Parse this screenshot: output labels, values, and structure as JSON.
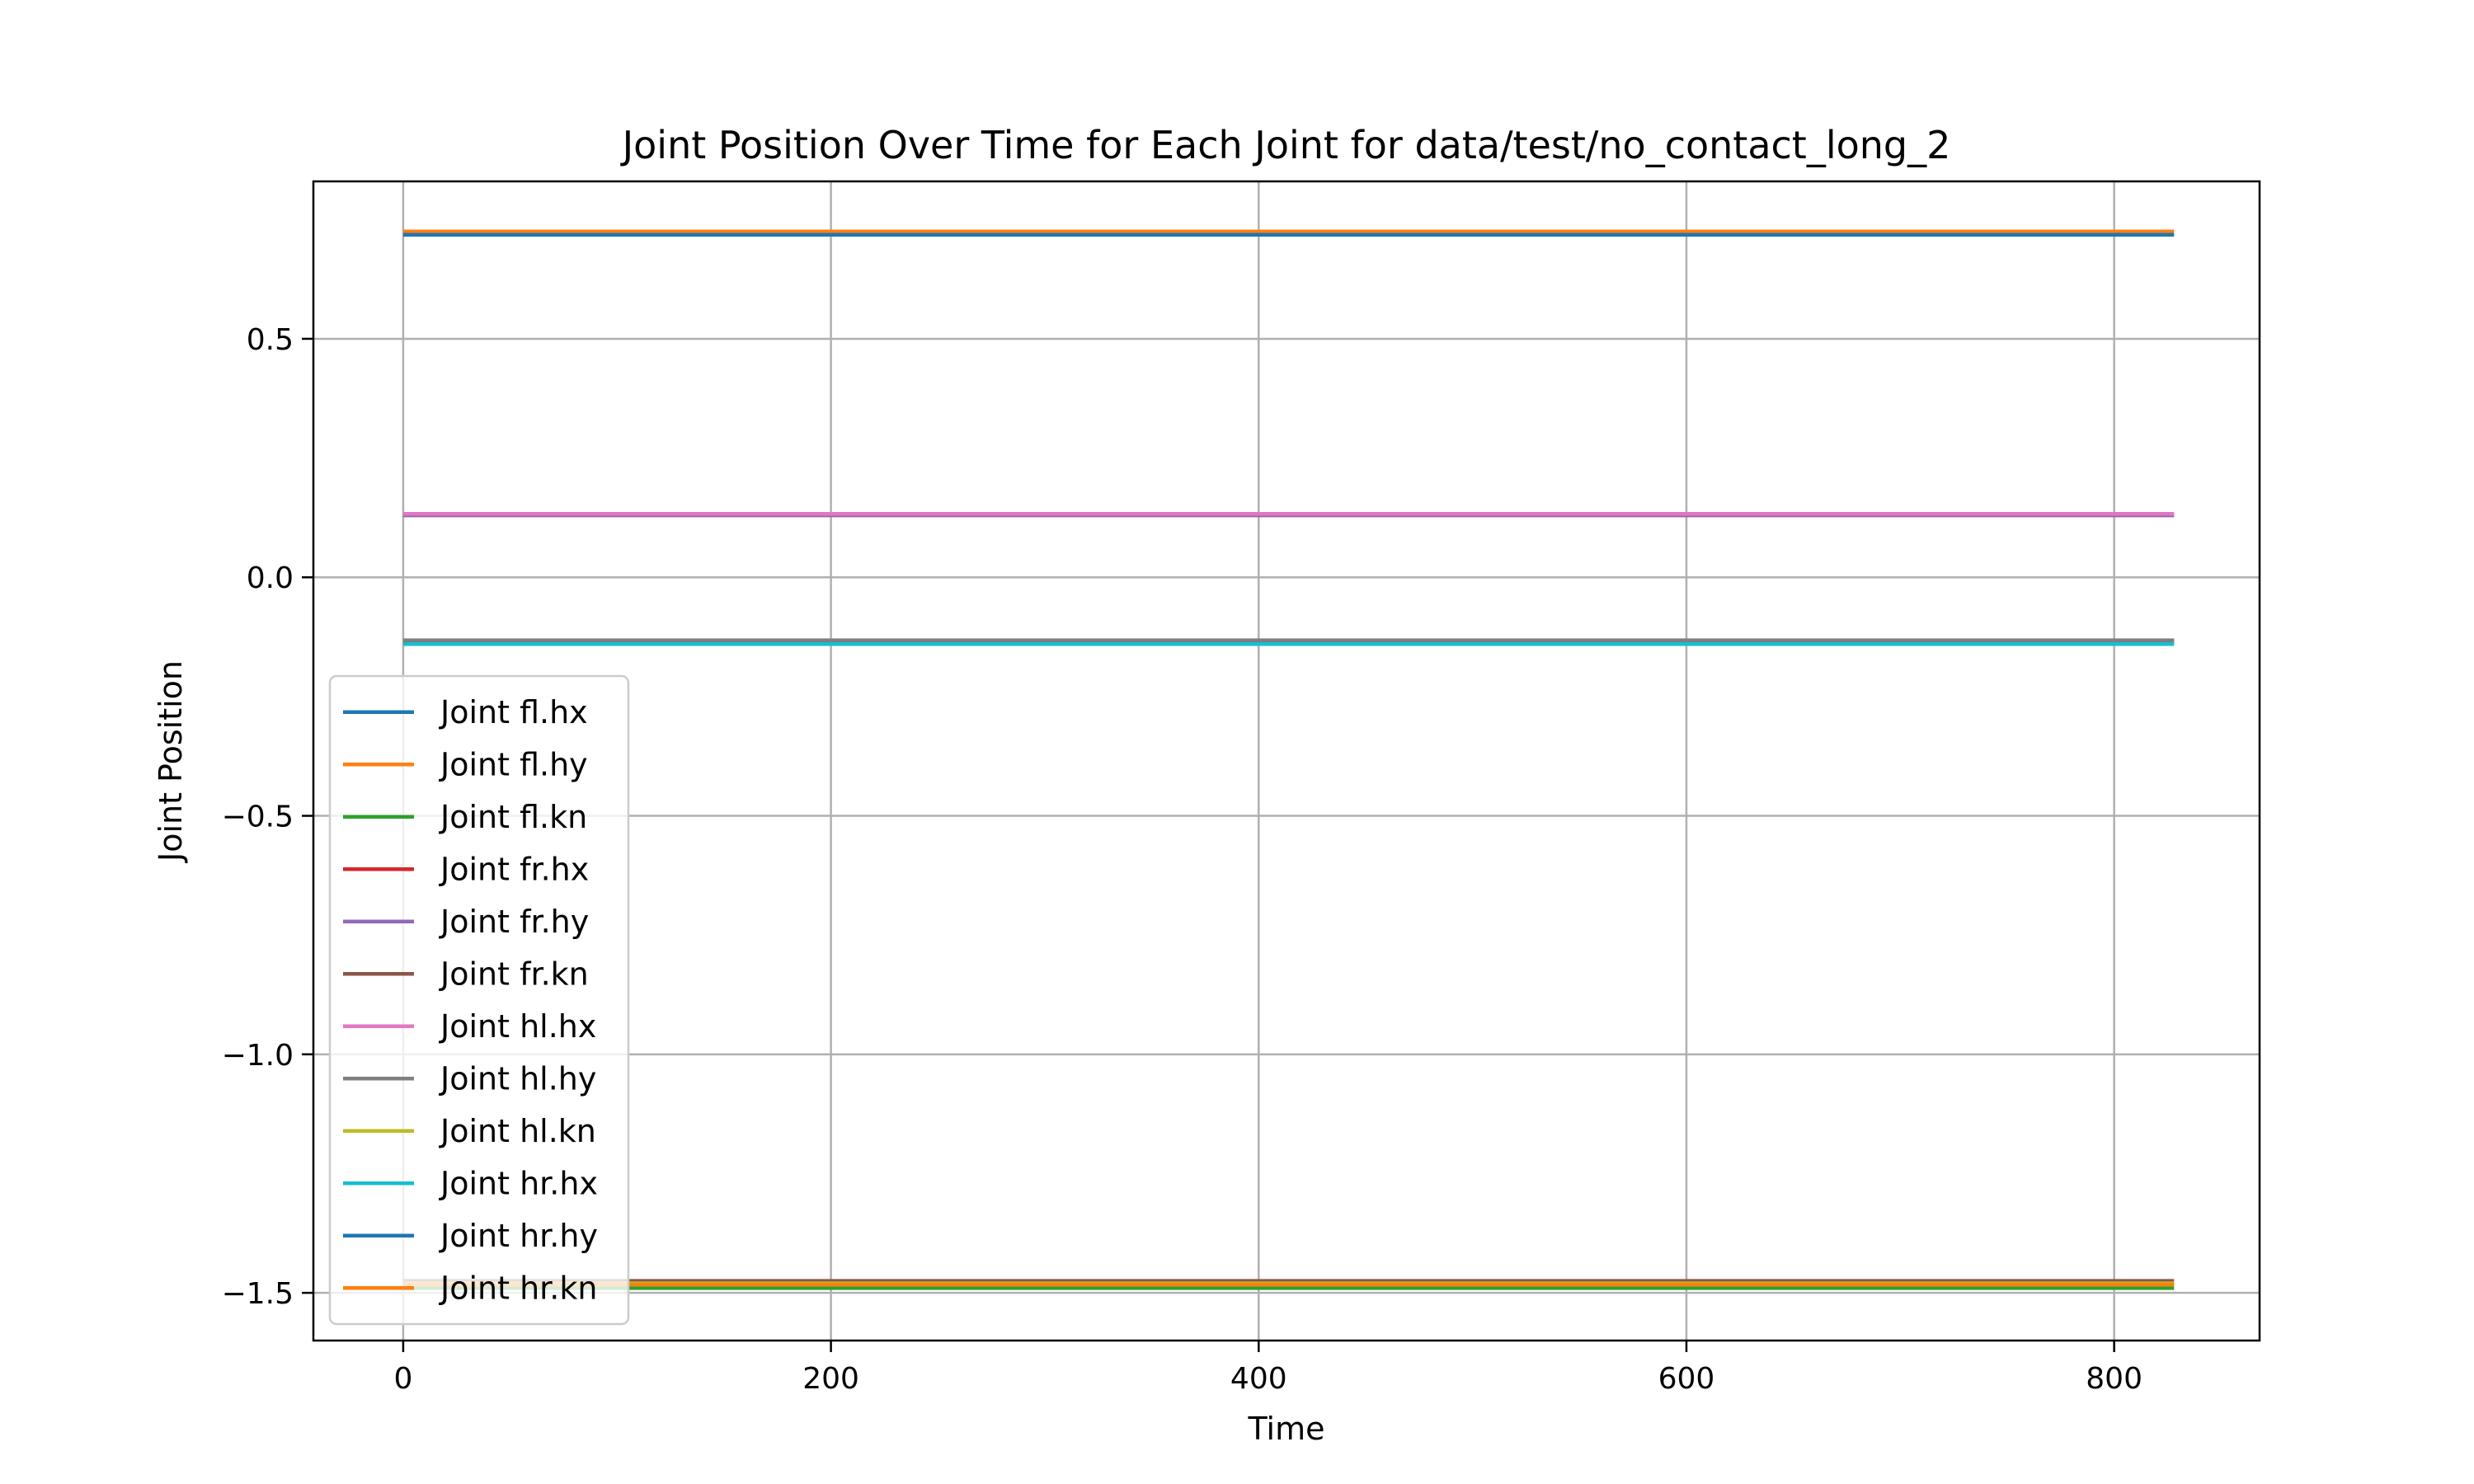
{
  "chart_data": {
    "type": "line",
    "title": "Joint Position Over Time for Each Joint for data/test/no_contact_long_2",
    "xlabel": "Time",
    "ylabel": "Joint Position",
    "xlim": [
      -42,
      868
    ],
    "ylim": [
      -1.6,
      0.83
    ],
    "xticks": [
      0,
      200,
      400,
      600,
      800
    ],
    "xtick_labels": [
      "0",
      "200",
      "400",
      "600",
      "800"
    ],
    "yticks": [
      -1.5,
      -1.0,
      -0.5,
      0.0,
      0.5
    ],
    "ytick_labels": [
      "−1.5",
      "−1.0",
      "−0.5",
      "0.0",
      "0.5"
    ],
    "grid": true,
    "legend_position": "lower-left",
    "x": [
      0,
      828
    ],
    "series": [
      {
        "name": "Joint fl.hx",
        "color": "#1f77b4",
        "values": [
          -0.135,
          -0.135
        ]
      },
      {
        "name": "Joint fl.hy",
        "color": "#ff7f0e",
        "values": [
          0.725,
          0.725
        ]
      },
      {
        "name": "Joint fl.kn",
        "color": "#2ca02c",
        "values": [
          -1.49,
          -1.49
        ]
      },
      {
        "name": "Joint fr.hx",
        "color": "#d62728",
        "values": [
          0.13,
          0.13
        ]
      },
      {
        "name": "Joint fr.hy",
        "color": "#9467bd",
        "values": [
          0.13,
          0.13
        ]
      },
      {
        "name": "Joint fr.kn",
        "color": "#8c564b",
        "values": [
          -1.475,
          -1.475
        ]
      },
      {
        "name": "Joint hl.hx",
        "color": "#e377c2",
        "values": [
          0.133,
          0.133
        ]
      },
      {
        "name": "Joint hl.hy",
        "color": "#7f7f7f",
        "values": [
          -0.132,
          -0.132
        ]
      },
      {
        "name": "Joint hl.kn",
        "color": "#bcbd22",
        "values": [
          -1.48,
          -1.48
        ]
      },
      {
        "name": "Joint hr.hx",
        "color": "#17becf",
        "values": [
          -0.14,
          -0.14
        ]
      },
      {
        "name": "Joint hr.hy",
        "color": "#1f77b4",
        "values": [
          0.718,
          0.718
        ]
      },
      {
        "name": "Joint hr.kn",
        "color": "#ff7f0e",
        "values": [
          -1.483,
          -1.483
        ]
      }
    ]
  }
}
